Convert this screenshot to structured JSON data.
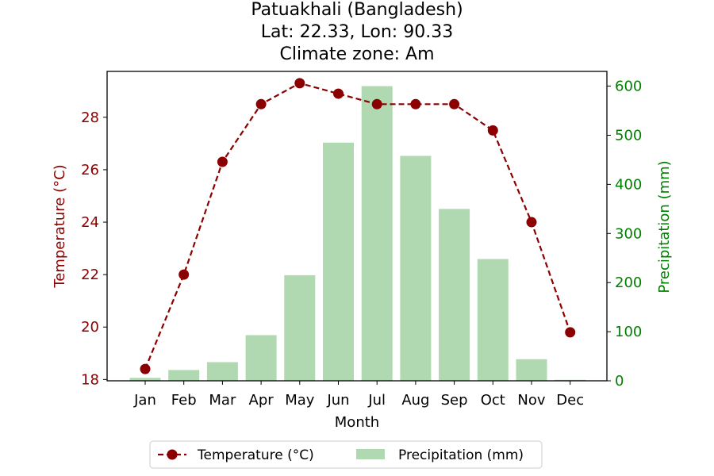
{
  "chart_data": {
    "type": "bar+line",
    "title": [
      "Patuakhali (Bangladesh)",
      "Lat: 22.33, Lon: 90.33",
      "Climate zone: Am"
    ],
    "xlabel": "Month",
    "categories": [
      "Jan",
      "Feb",
      "Mar",
      "Apr",
      "May",
      "Jun",
      "Jul",
      "Aug",
      "Sep",
      "Oct",
      "Nov",
      "Dec"
    ],
    "temperature": {
      "name": "Temperature (°C)",
      "axis_label": "Temperature (°C)",
      "values": [
        18.4,
        22.0,
        26.3,
        28.5,
        29.3,
        28.9,
        28.5,
        28.5,
        28.5,
        27.5,
        24.0,
        19.8
      ],
      "yticks": [
        18,
        20,
        22,
        24,
        26,
        28
      ],
      "ylim": [
        17.95,
        29.75
      ],
      "color": "#8b0000",
      "style": "dashed line with circle markers"
    },
    "precipitation": {
      "name": "Precipitation (mm)",
      "axis_label": "Precipitation (mm)",
      "values": [
        6,
        22,
        38,
        93,
        215,
        485,
        600,
        458,
        350,
        248,
        44,
        2
      ],
      "yticks": [
        0,
        100,
        200,
        300,
        400,
        500,
        600
      ],
      "ylim": [
        0,
        630
      ],
      "color": "#b0d9b1",
      "axis_color": "#008000"
    },
    "legend": {
      "placement": "bottom-center",
      "items": [
        "Temperature (°C)",
        "Precipitation (mm)"
      ]
    }
  }
}
